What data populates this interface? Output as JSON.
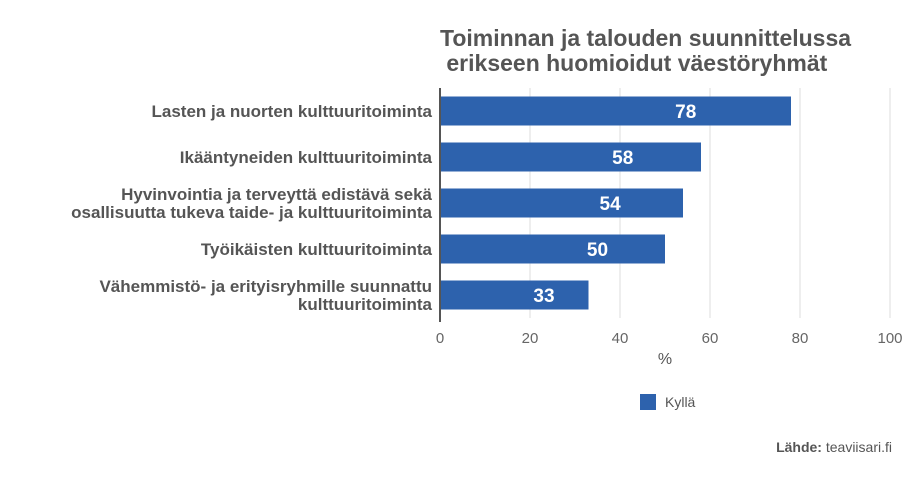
{
  "chart_data": {
    "type": "bar",
    "orientation": "horizontal",
    "title": "Toiminnan ja talouden suunnittelussa\n erikseen huomioidut väestöryhmät",
    "categories": [
      [
        "Lasten ja nuorten kulttuuritoiminta"
      ],
      [
        "Ikääntyneiden kulttuuritoiminta"
      ],
      [
        "Hyvinvointia ja terveyttä edistävä sekä",
        "osallisuutta tukeva taide- ja kulttuuritoiminta"
      ],
      [
        "Työikäisten kulttuuritoiminta"
      ],
      [
        "Vähemmistö- ja erityisryhmille suunnattu",
        "kulttuuritoiminta"
      ]
    ],
    "series": [
      {
        "name": "Kyllä",
        "values": [
          78,
          58,
          54,
          50,
          33
        ],
        "color": "#2d62ad"
      }
    ],
    "xlabel": "%",
    "xlim": [
      0,
      100
    ],
    "xticks": [
      0,
      20,
      40,
      60,
      80,
      100
    ],
    "grid": true,
    "legend_position": "bottom",
    "data_labels": true
  },
  "source": {
    "label": "Lähde:",
    "value": "teaviisari.fi"
  }
}
